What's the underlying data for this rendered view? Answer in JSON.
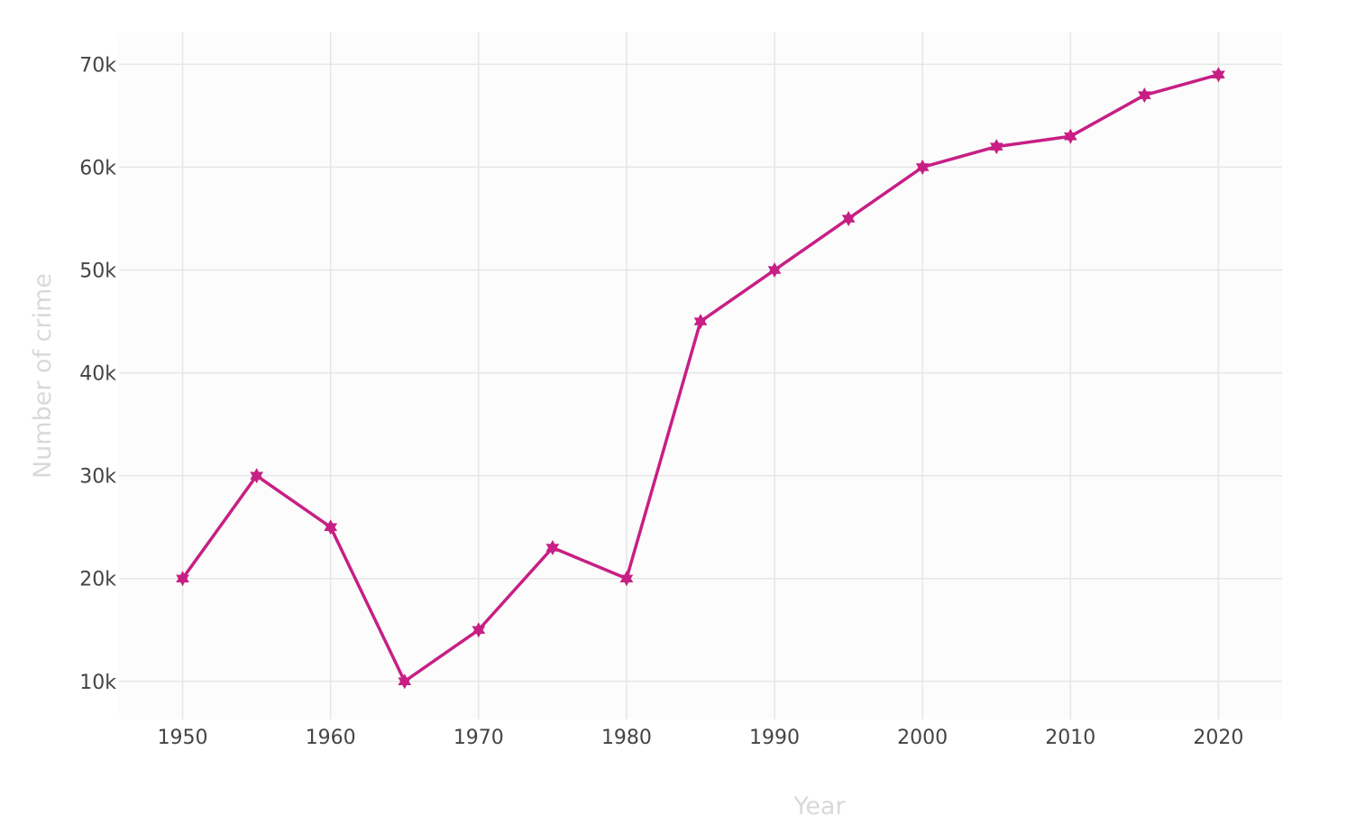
{
  "chart_data": {
    "type": "line",
    "title": "",
    "xlabel": "Year",
    "ylabel": "Number of crime",
    "x": [
      1950,
      1955,
      1960,
      1965,
      1970,
      1975,
      1980,
      1985,
      1990,
      1995,
      2000,
      2005,
      2010,
      2015,
      2020
    ],
    "series": [
      {
        "values": [
          20000,
          30000,
          25000,
          10000,
          15000,
          23000,
          20000,
          45000,
          50000,
          55000,
          60000,
          62000,
          63000,
          67000,
          69000
        ],
        "color": "#c71f84",
        "marker": "star"
      }
    ],
    "xlim": [
      1945.7,
      2024.3
    ],
    "ylim": [
      6300,
      73100
    ],
    "xticks": [
      1950,
      1960,
      1970,
      1980,
      1990,
      2000,
      2010,
      2020
    ],
    "xtick_labels": [
      "1950",
      "1960",
      "1970",
      "1980",
      "1990",
      "2000",
      "2010",
      "2020"
    ],
    "yticks": [
      10000,
      20000,
      30000,
      40000,
      50000,
      60000,
      70000
    ],
    "ytick_labels": [
      "10k",
      "20k",
      "30k",
      "40k",
      "50k",
      "60k",
      "70k"
    ],
    "grid": true,
    "legend": "none",
    "plot_background": "#fcfcfd",
    "axis_title_color": "#d9d9d9",
    "tick_color": "#444444"
  }
}
